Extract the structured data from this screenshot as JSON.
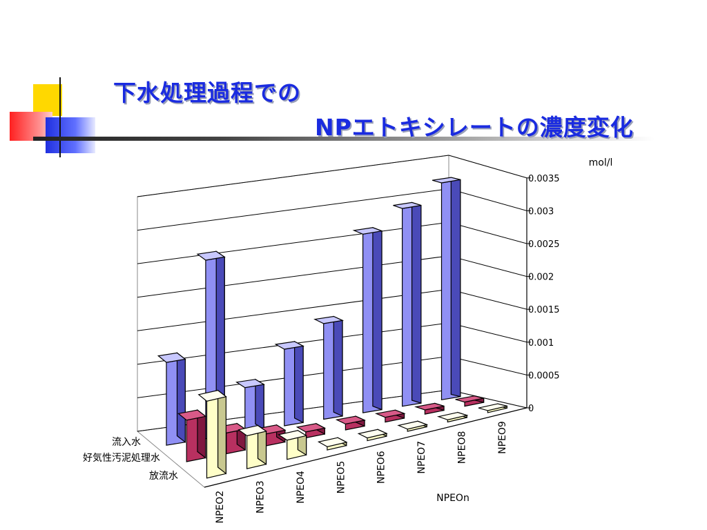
{
  "slide": {
    "title_line1": "下水処理過程での",
    "title_line2": "NPエトキシレートの濃度変化"
  },
  "colors": {
    "title": "#1a2be0",
    "series_influent": "#8080f0",
    "series_sludge": "#b02a5a",
    "series_effluent": "#ffffc8"
  },
  "chart_data": {
    "type": "bar",
    "subtype": "3d-clustered-depth",
    "categories": [
      "NPEO2",
      "NPEO3",
      "NPEO4",
      "NPEO5",
      "NPEO6",
      "NPEO7",
      "NPEO8",
      "NPEO9"
    ],
    "series": [
      {
        "name": "流入水",
        "values": [
          0.0013,
          0.0028,
          0.0007,
          0.0012,
          0.0015,
          0.0028,
          0.0031,
          0.0034
        ]
      },
      {
        "name": "好気性汚泥処理水",
        "values": [
          0.0007,
          0.00035,
          0.0002,
          0.0001,
          0.0001,
          8e-05,
          7e-05,
          7e-05
        ]
      },
      {
        "name": "放流水",
        "values": [
          0.0014,
          0.0006,
          0.00035,
          6e-05,
          5e-05,
          4e-05,
          4e-05,
          3e-05
        ]
      }
    ],
    "y_ticks": [
      "0",
      "0.0005",
      "0.001",
      "0.0015",
      "0.002",
      "0.0025",
      "0.003",
      "0.0035"
    ],
    "ylim": [
      0,
      0.0035
    ],
    "unit_label": "mol/l",
    "xlabel": "NPEOn",
    "grid": true
  }
}
